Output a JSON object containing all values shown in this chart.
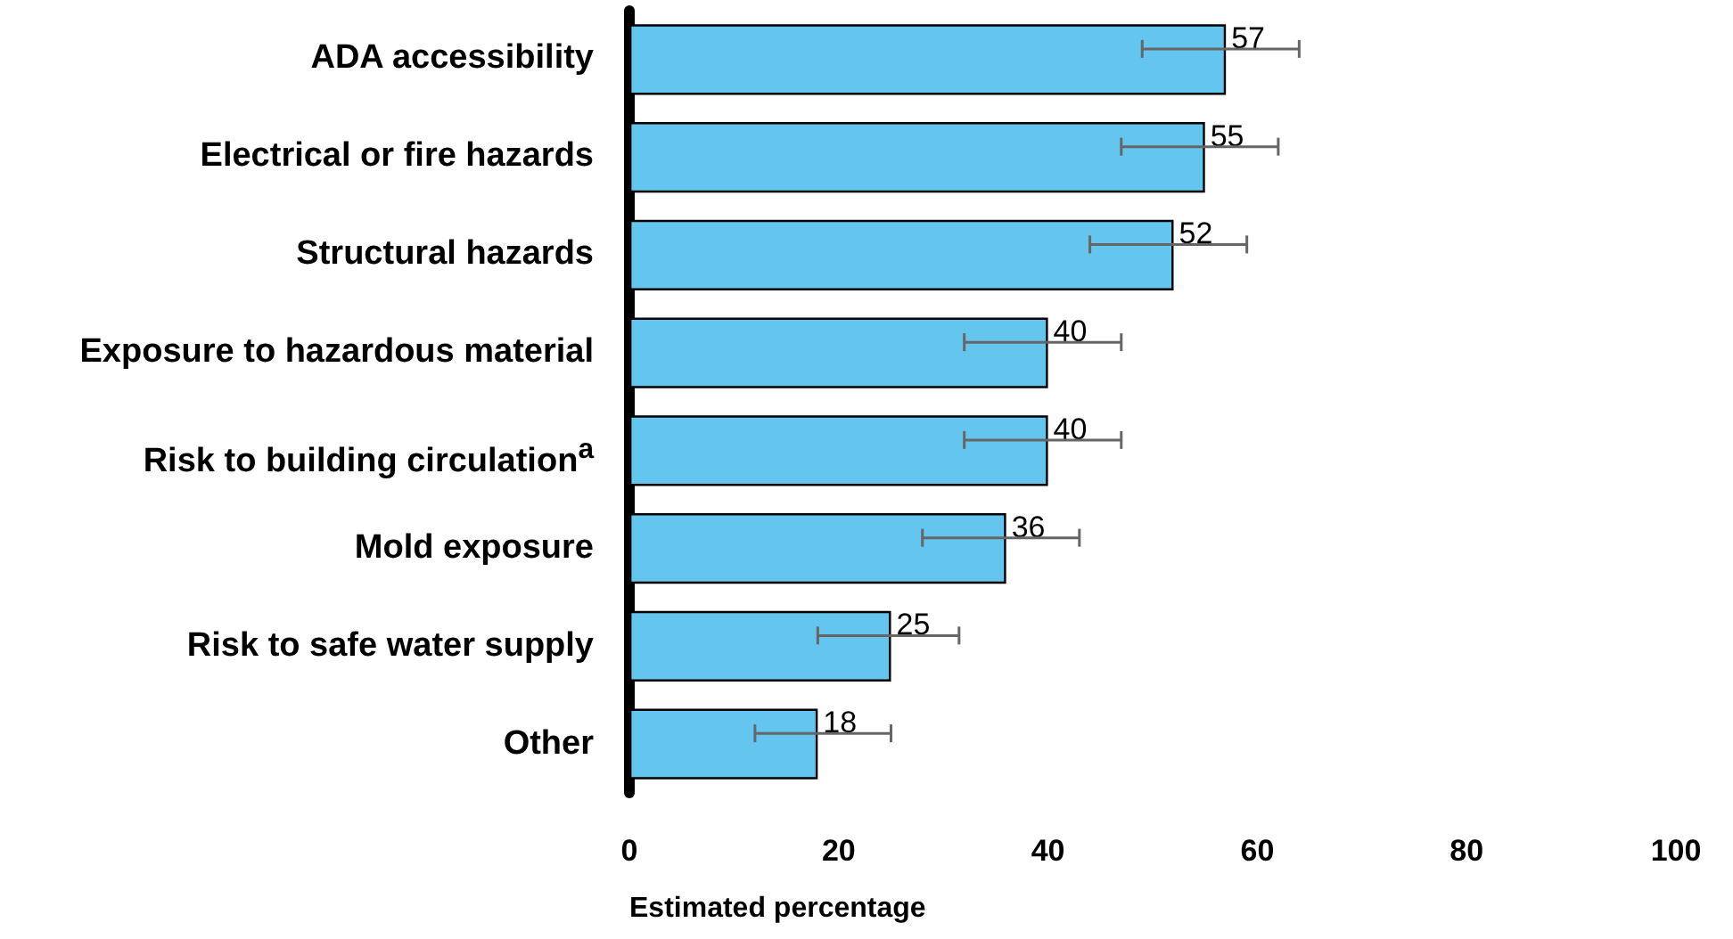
{
  "chart_data": {
    "type": "bar",
    "orientation": "horizontal",
    "xlabel": "Estimated percentage",
    "categories": [
      "ADA accessibility",
      "Electrical or fire hazards",
      "Structural hazards",
      "Exposure to hazardous material",
      "Risk to building circulation$^{a}$",
      "Mold exposure",
      "Risk to safe water supply",
      "Other"
    ],
    "values": [
      57,
      55,
      52,
      40,
      40,
      36,
      25,
      18
    ],
    "errors": [
      [
        49,
        64
      ],
      [
        47,
        62
      ],
      [
        44,
        59
      ],
      [
        32,
        47
      ],
      [
        32,
        47
      ],
      [
        28,
        43
      ],
      [
        18,
        31.5
      ],
      [
        12,
        25
      ]
    ],
    "color": "#64c5ef",
    "data_labels": true,
    "grid": false,
    "xlim": [
      0,
      100
    ],
    "xticks": [
      0,
      20,
      40,
      60,
      80,
      100
    ]
  }
}
